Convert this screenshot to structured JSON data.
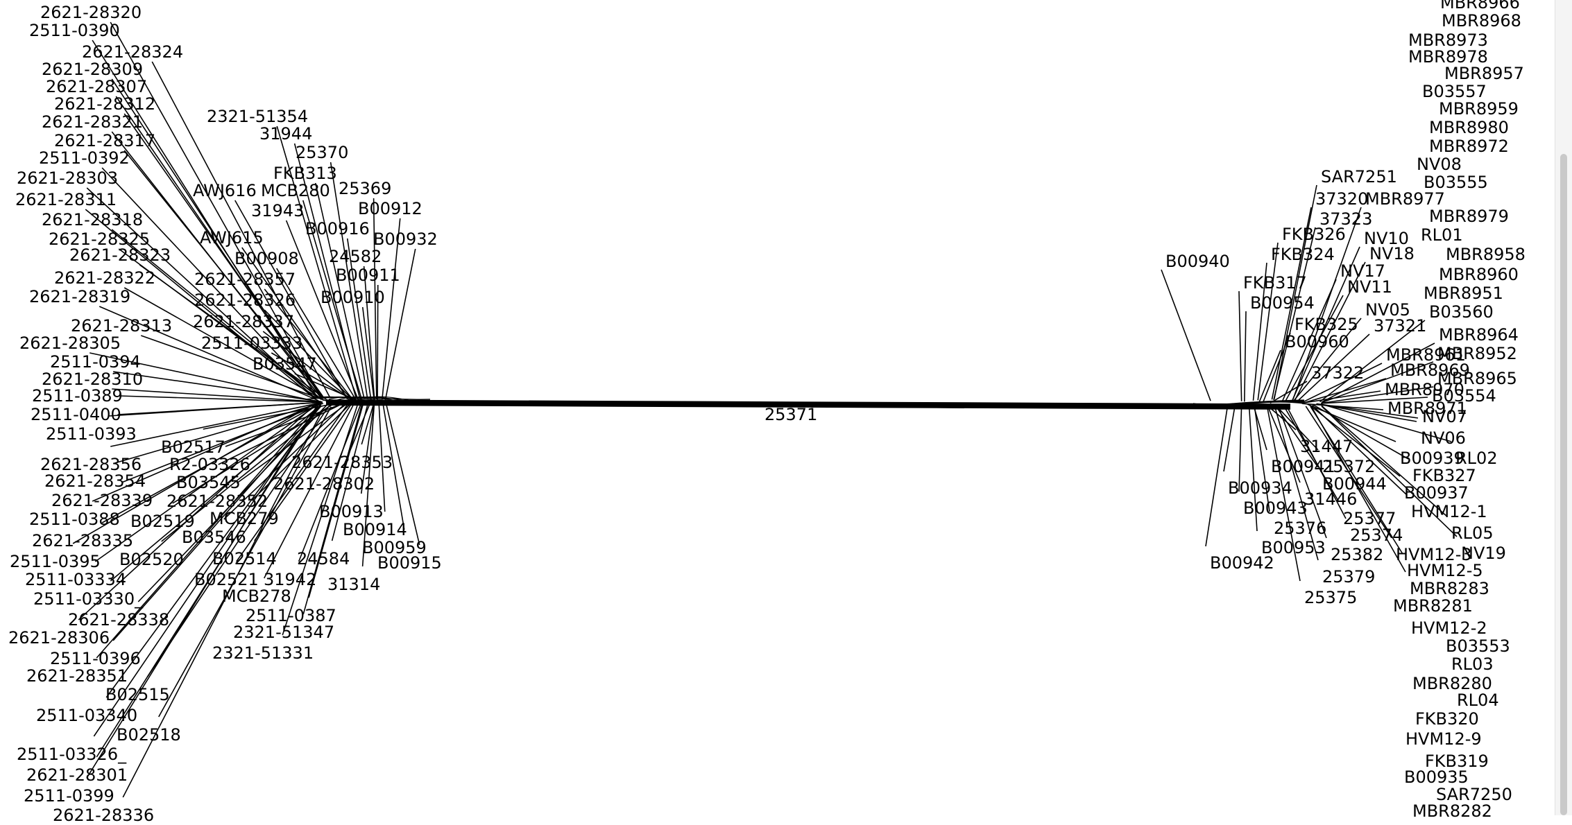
{
  "network": {
    "central_label": "25371",
    "left_labels": [
      "2621-28320",
      "2511-0390",
      "2621-28324",
      "2621-28309",
      "2621-28307",
      "2621-28312",
      "2621-28321",
      "2621-28317",
      "2511-0392",
      "2621-28303",
      "2621-28311",
      "2621-28318",
      "2621-28325",
      "2621-28323",
      "2621-28322",
      "2621-28319",
      "2621-28313",
      "2621-28305",
      "2511-0394",
      "2621-28310",
      "2511-0389",
      "2511-0400",
      "2511-0393",
      "2621-28356",
      "2621-28354",
      "2621-28339",
      "2511-0388",
      "2621-28335",
      "2511-0395",
      "2511-03334",
      "2511-03330_",
      "2621-28338",
      "2621-28306",
      "2511-0396",
      "2621-28351",
      "B02515",
      "2511-03340",
      "B02518",
      "2511-03326_",
      "2621-28301",
      "2511-0399",
      "2621-28336",
      "2321-51354",
      "31944",
      "25370",
      "FKB313",
      "AWJ616",
      "MCB280",
      "25369",
      "31943",
      "B00912",
      "B00916",
      "AWJ615",
      "B00932",
      "B00908",
      "24582",
      "2621-28357",
      "B00911",
      "2621-28326",
      "B00910",
      "2621-28337",
      "2511-03333",
      "B03547",
      "B02517",
      "R2-03326",
      "2621-28353",
      "B03545",
      "2621-28302",
      "2621-28352",
      "B00913",
      "B02519",
      "MCB279",
      "B00914",
      "B03546",
      "B00959",
      "B02514",
      "24584",
      "B00915",
      "B02520",
      "B02521",
      "31942",
      "31314",
      "MCB278",
      "2511-0387",
      "2321-51347",
      "2321-51331"
    ],
    "right_labels": [
      "MBR8966",
      "MBR8968",
      "MBR8973",
      "MBR8978",
      "MBR8957",
      "B03557",
      "MBR8959",
      "MBR8980",
      "MBR8972",
      "NV08",
      "B03555",
      "SAR7251",
      "37320",
      "MBR8977",
      "37323",
      "MBR8979",
      "FKB326",
      "NV10",
      "RL01",
      "B00940",
      "FKB324",
      "NV18",
      "MBR8958",
      "NV17",
      "MBR8960",
      "FKB317",
      "NV11",
      "MBR8951",
      "NV05",
      "B00954",
      "B03560",
      "FKB325",
      "37321",
      "MBR8964",
      "B00960",
      "MBR8961",
      "MBR8952",
      "37322",
      "MBR8969",
      "MBR8965",
      "MBR8970",
      "B03554",
      "MBR8971",
      "NV07",
      "NV06",
      "31447",
      "B00939",
      "RL02",
      "B00941",
      "25372",
      "FKB327",
      "B00934",
      "B00944",
      "B00937",
      "31446",
      "B00943",
      "HVM12-1",
      "25377",
      "25376",
      "25374",
      "RL05",
      "B00953",
      "25382",
      "HVM12-3",
      "NV19",
      "B00942",
      "HVM12-5",
      "25379",
      "MBR8283",
      "25375",
      "MBR8281",
      "HVM12-2",
      "B03553",
      "RL03",
      "MBR8280",
      "RL04",
      "FKB320",
      "HVM12-9",
      "FKB319",
      "B00935",
      "SAR7250",
      "MBR8282"
    ]
  }
}
